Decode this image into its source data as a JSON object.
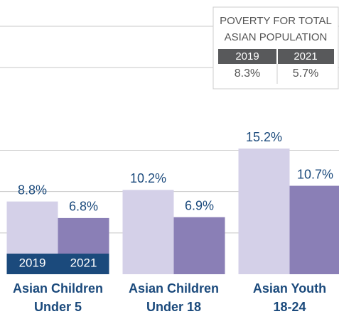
{
  "chart_data": {
    "type": "bar",
    "categories": [
      [
        "Asian Children",
        "Under 5"
      ],
      [
        "Asian Children",
        "Under 18"
      ],
      [
        "Asian Youth",
        "18-24"
      ]
    ],
    "series": [
      {
        "name": "2019",
        "color": "#d4d0e8",
        "values": [
          8.8,
          10.2,
          15.2
        ],
        "value_labels": [
          "8.8%",
          "10.2%",
          "15.2%"
        ]
      },
      {
        "name": "2021",
        "color": "#8a7fb6",
        "values": [
          6.8,
          6.9,
          10.7
        ],
        "value_labels": [
          "6.8%",
          "6.9%",
          "10.7%"
        ]
      }
    ],
    "ylim": [
      0,
      30
    ],
    "yticks": [
      5,
      10,
      15,
      25,
      30
    ],
    "grid": true,
    "legend": "bottom-left",
    "legend_color": "#1b4a7c"
  },
  "inset_table": {
    "title": [
      "POVERTY FOR TOTAL",
      "ASIAN POPULATION"
    ],
    "headers": [
      "2019",
      "2021"
    ],
    "values": [
      "8.3%",
      "5.7%"
    ]
  }
}
